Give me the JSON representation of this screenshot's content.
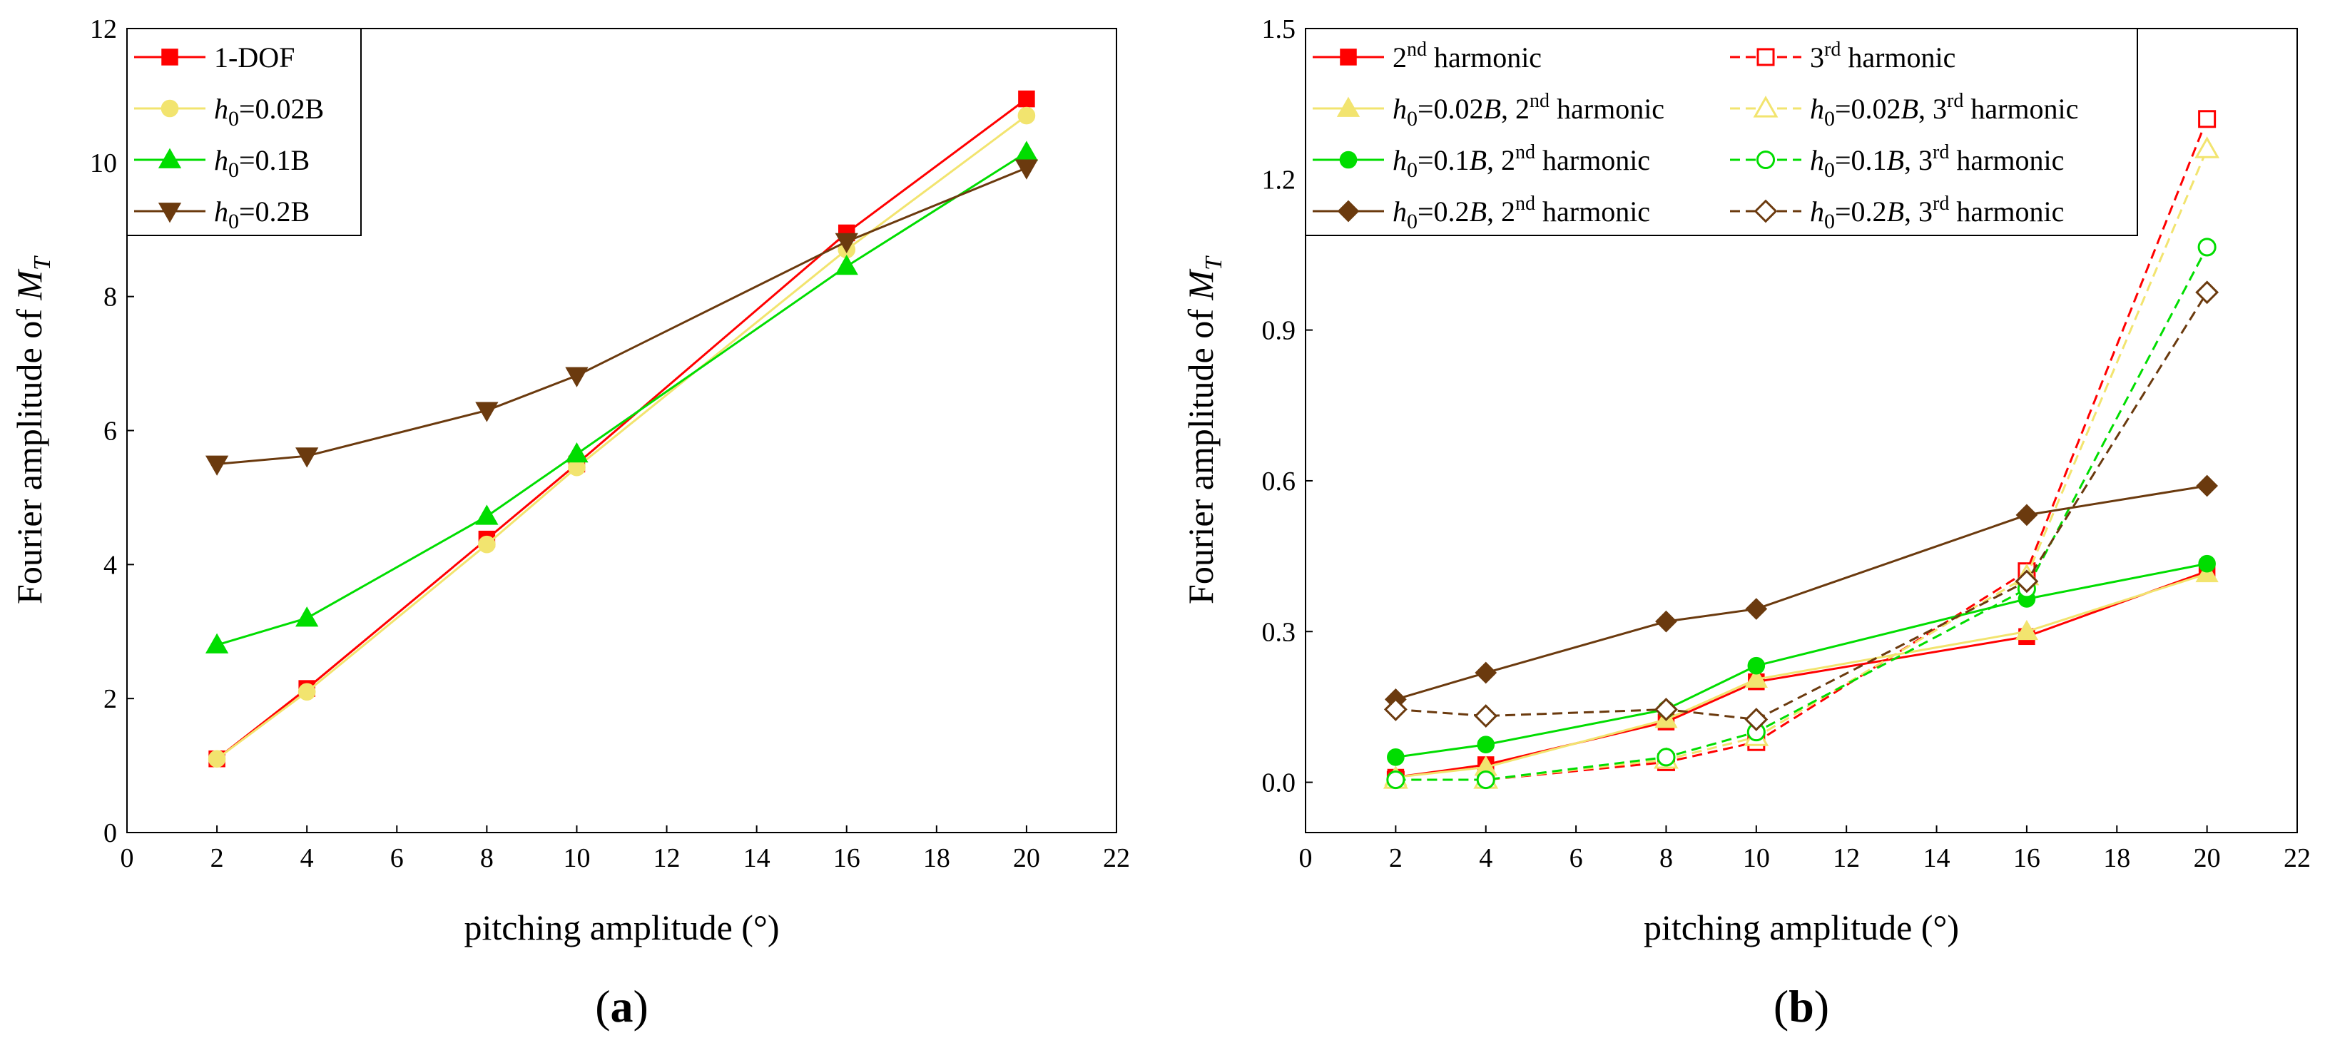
{
  "chart_data": [
    {
      "panel_label": "(a)",
      "panel_letter": "a",
      "type": "line",
      "xlabel": "pitching amplitude (°)",
      "ylabel": "Fourier amplitude of M_T",
      "ylabel_main": "Fourier amplitude of ",
      "ylabel_sym": "M",
      "ylabel_sub": "T",
      "xlim": [
        0,
        22
      ],
      "ylim": [
        0,
        12
      ],
      "xticks": [
        0,
        2,
        4,
        6,
        8,
        10,
        12,
        14,
        16,
        18,
        20,
        22
      ],
      "yticks": [
        0,
        2,
        4,
        6,
        8,
        10,
        12
      ],
      "ytick_labels": [
        "0",
        "2",
        "4",
        "6",
        "8",
        "10",
        "12"
      ],
      "legend_position": "top-left",
      "legend": [
        {
          "label": "1-DOF"
        },
        {
          "label": "h0=0.02B",
          "pre": "h",
          "sub": "0",
          "post": "=0.02B"
        },
        {
          "label": "h0=0.1B",
          "pre": "h",
          "sub": "0",
          "post": "=0.1B"
        },
        {
          "label": "h0=0.2B",
          "pre": "h",
          "sub": "0",
          "post": "=0.2B"
        }
      ],
      "series": [
        {
          "name": "1-DOF",
          "color": "#ff0000",
          "marker": "square",
          "filled": true,
          "dashed": false,
          "x": [
            2,
            4,
            8,
            10,
            16,
            20
          ],
          "values": [
            1.1,
            2.15,
            4.38,
            5.5,
            8.95,
            10.95
          ]
        },
        {
          "name": "h0=0.02B",
          "color": "#f2e46f",
          "marker": "circle",
          "filled": true,
          "dashed": false,
          "x": [
            2,
            4,
            8,
            10,
            16,
            20
          ],
          "values": [
            1.1,
            2.1,
            4.3,
            5.45,
            8.7,
            10.7
          ]
        },
        {
          "name": "h0=0.1B",
          "color": "#00dd00",
          "marker": "triangle-up",
          "filled": true,
          "dashed": false,
          "x": [
            2,
            4,
            8,
            10,
            16,
            20
          ],
          "values": [
            2.8,
            3.2,
            4.72,
            5.65,
            8.45,
            10.15
          ]
        },
        {
          "name": "h0=0.2B",
          "color": "#6b3a0e",
          "marker": "triangle-down",
          "filled": true,
          "dashed": false,
          "x": [
            2,
            4,
            8,
            10,
            16,
            20
          ],
          "values": [
            5.5,
            5.62,
            6.3,
            6.82,
            8.82,
            9.92
          ]
        }
      ]
    },
    {
      "panel_label": "(b)",
      "panel_letter": "b",
      "type": "line",
      "xlabel": "pitching amplitude (°)",
      "ylabel": "Fourier amplitude of M_T",
      "ylabel_main": "Fourier amplitude of ",
      "ylabel_sym": "M",
      "ylabel_sub": "T",
      "xlim": [
        0,
        22
      ],
      "ylim": [
        -0.1,
        1.5
      ],
      "xticks": [
        0,
        2,
        4,
        6,
        8,
        10,
        12,
        14,
        16,
        18,
        20,
        22
      ],
      "yticks": [
        0,
        0.3,
        0.6,
        0.9,
        1.2,
        1.5
      ],
      "ytick_labels": [
        "0.0",
        "0.3",
        "0.6",
        "0.9",
        "1.2",
        "1.5"
      ],
      "legend_position": "top-left",
      "legend": [
        {
          "label": "2nd harmonic",
          "pre": "",
          "mid": "",
          "ord": "2",
          "sup": "nd",
          "tail": " harmonic"
        },
        {
          "label": "3rd harmonic",
          "pre": "",
          "mid": "",
          "ord": "3",
          "sup": "rd",
          "tail": " harmonic"
        },
        {
          "label": "h0=0.02B, 2nd harmonic",
          "pre": "h",
          "sub": "0",
          "mid": "=0.02",
          "b": "B",
          "ord": ", 2",
          "sup": "nd",
          "tail": " harmonic"
        },
        {
          "label": "h0=0.02B, 3rd harmonic",
          "pre": "h",
          "sub": "0",
          "mid": "=0.02",
          "b": "B",
          "ord": ", 3",
          "sup": "rd",
          "tail": " harmonic"
        },
        {
          "label": "h0=0.1B, 2nd harmonic",
          "pre": "h",
          "sub": "0",
          "mid": "=0.1",
          "b": "B",
          "ord": ", 2",
          "sup": "nd",
          "tail": " harmonic"
        },
        {
          "label": "h0=0.1B, 3rd harmonic",
          "pre": "h",
          "sub": "0",
          "mid": "=0.1",
          "b": "B",
          "ord": ", 3",
          "sup": "rd",
          "tail": " harmonic"
        },
        {
          "label": "h0=0.2B, 2nd harmonic",
          "pre": "h",
          "sub": "0",
          "mid": "=0.2",
          "b": "B",
          "ord": ", 2",
          "sup": "nd",
          "tail": " harmonic"
        },
        {
          "label": "h0=0.2B, 3rd harmonic",
          "pre": "h",
          "sub": "0",
          "mid": "=0.2",
          "b": "B",
          "ord": ", 3",
          "sup": "rd",
          "tail": " harmonic"
        }
      ],
      "series": [
        {
          "name": "2nd harmonic",
          "color": "#ff0000",
          "marker": "square",
          "filled": true,
          "dashed": false,
          "x": [
            2,
            4,
            8,
            10,
            16,
            20
          ],
          "values": [
            0.01,
            0.035,
            0.12,
            0.2,
            0.29,
            0.42
          ]
        },
        {
          "name": "3rd harmonic",
          "color": "#ff0000",
          "marker": "square",
          "filled": false,
          "dashed": true,
          "x": [
            2,
            4,
            8,
            10,
            16,
            20
          ],
          "values": [
            0.005,
            0.005,
            0.04,
            0.08,
            0.42,
            1.32
          ]
        },
        {
          "name": "h0=0.02B, 2nd harmonic",
          "color": "#f2e46f",
          "marker": "triangle-up",
          "filled": true,
          "dashed": false,
          "x": [
            2,
            4,
            8,
            10,
            16,
            20
          ],
          "values": [
            0.01,
            0.03,
            0.125,
            0.205,
            0.3,
            0.415
          ]
        },
        {
          "name": "h0=0.02B, 3rd harmonic",
          "color": "#f2e46f",
          "marker": "triangle-up",
          "filled": false,
          "dashed": true,
          "x": [
            2,
            4,
            8,
            10,
            16,
            20
          ],
          "values": [
            0.005,
            0.005,
            0.045,
            0.09,
            0.41,
            1.26
          ]
        },
        {
          "name": "h0=0.1B, 2nd harmonic",
          "color": "#00dd00",
          "marker": "circle",
          "filled": true,
          "dashed": false,
          "x": [
            2,
            4,
            8,
            10,
            16,
            20
          ],
          "values": [
            0.05,
            0.075,
            0.145,
            0.232,
            0.365,
            0.435
          ]
        },
        {
          "name": "h0=0.1B, 3rd harmonic",
          "color": "#00dd00",
          "marker": "circle",
          "filled": false,
          "dashed": true,
          "x": [
            2,
            4,
            8,
            10,
            16,
            20
          ],
          "values": [
            0.005,
            0.005,
            0.05,
            0.1,
            0.385,
            1.065
          ]
        },
        {
          "name": "h0=0.2B, 2nd harmonic",
          "color": "#6b3a0e",
          "marker": "diamond",
          "filled": true,
          "dashed": false,
          "x": [
            2,
            4,
            8,
            10,
            16,
            20
          ],
          "values": [
            0.165,
            0.218,
            0.32,
            0.345,
            0.532,
            0.59
          ]
        },
        {
          "name": "h0=0.2B, 3rd harmonic",
          "color": "#6b3a0e",
          "marker": "diamond",
          "filled": false,
          "dashed": true,
          "x": [
            2,
            4,
            8,
            10,
            16,
            20
          ],
          "values": [
            0.145,
            0.132,
            0.145,
            0.125,
            0.4,
            0.975
          ]
        }
      ]
    }
  ]
}
